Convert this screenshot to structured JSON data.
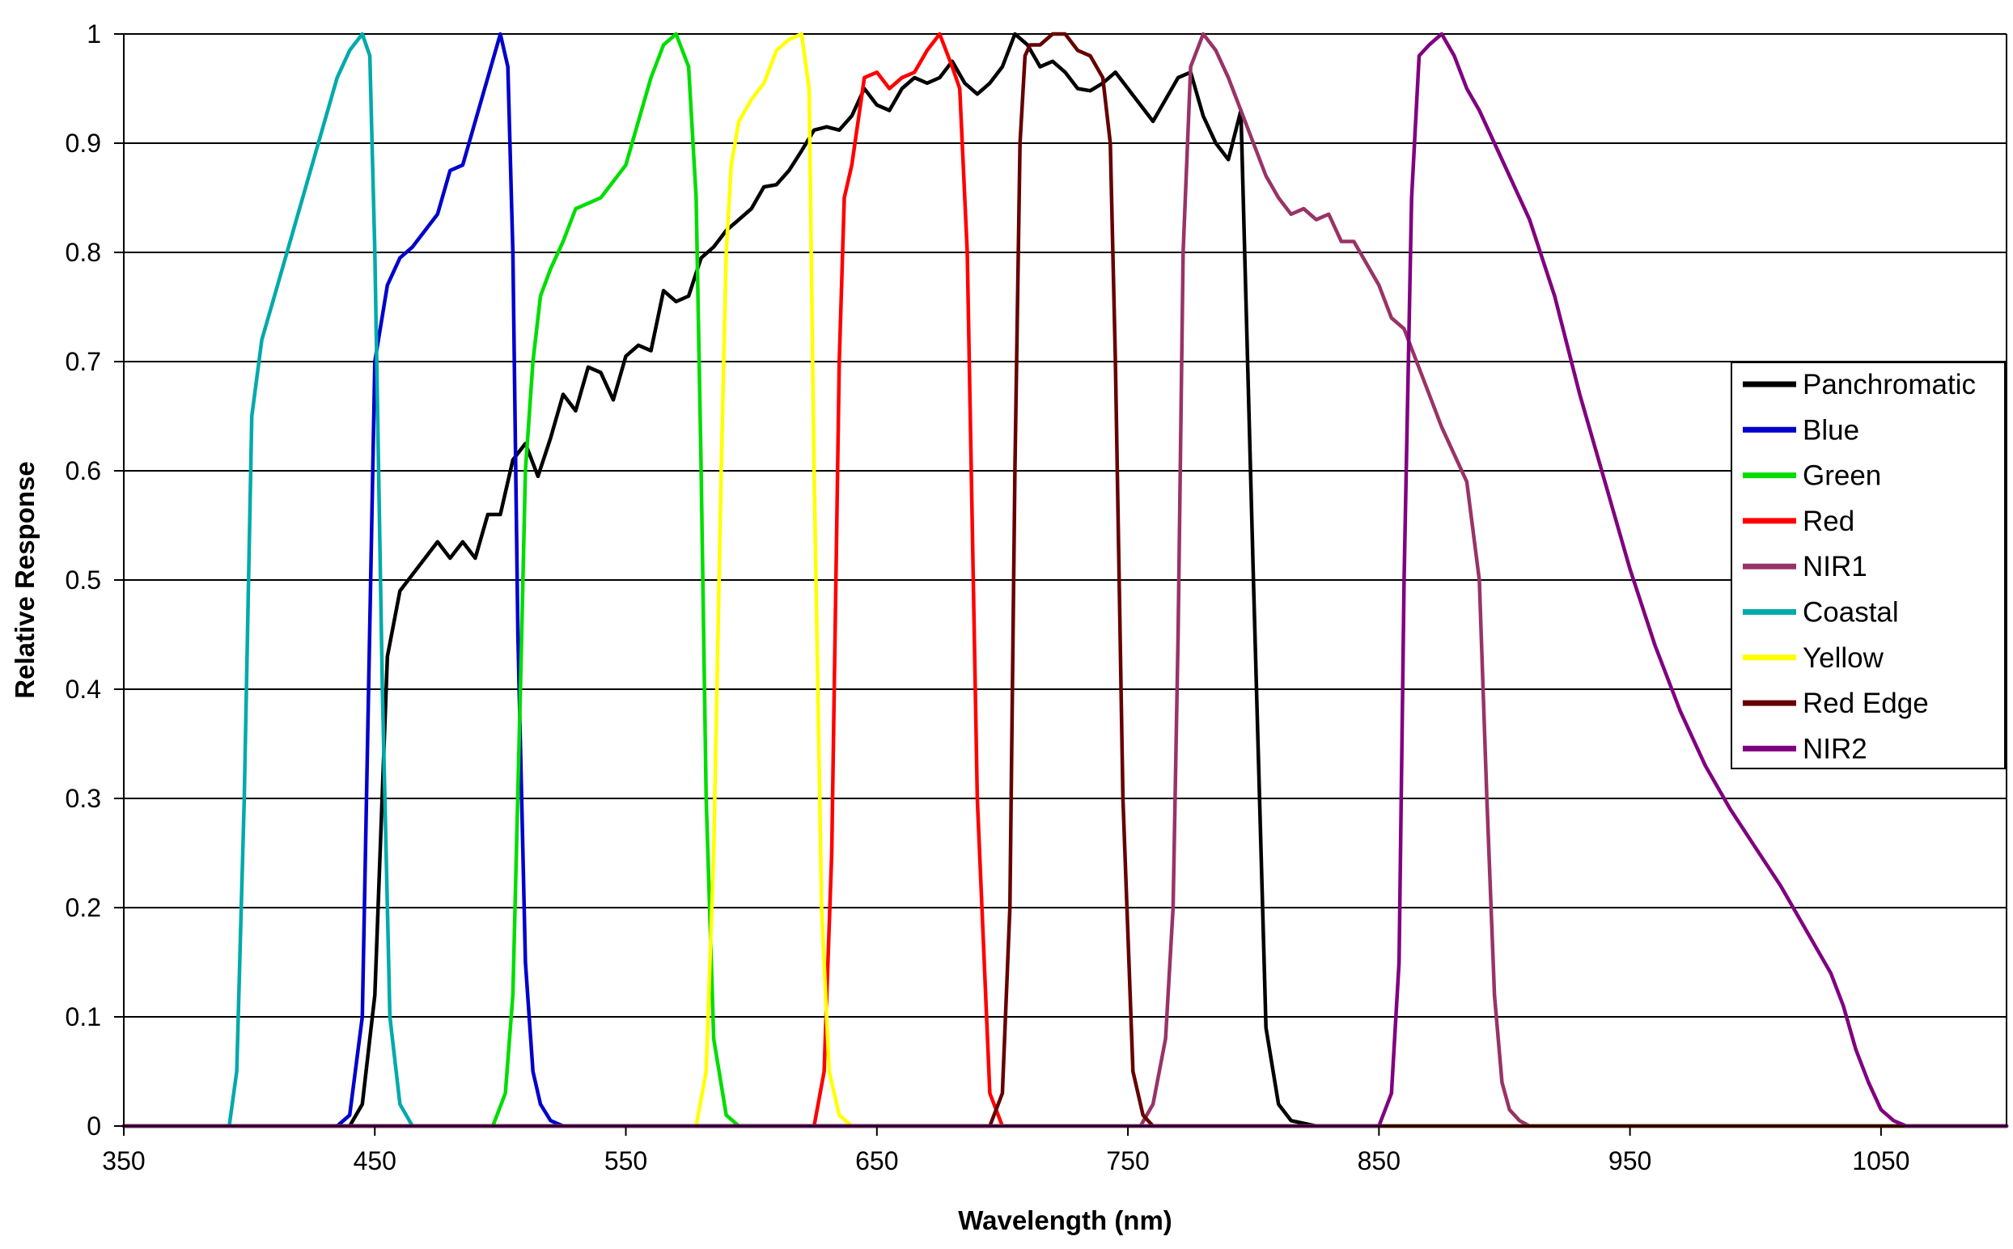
{
  "chart_data": {
    "type": "line",
    "title": "",
    "xlabel": "Wavelength (nm)",
    "ylabel": "Relative Response",
    "xlim": [
      350,
      1100
    ],
    "ylim": [
      0,
      1
    ],
    "x_ticks": [
      350,
      450,
      550,
      650,
      750,
      850,
      950,
      1050
    ],
    "y_ticks": [
      0,
      0.1,
      0.2,
      0.3,
      0.4,
      0.5,
      0.6,
      0.7,
      0.8,
      0.9,
      1
    ],
    "x_tick_labels": [
      "350",
      "450",
      "550",
      "650",
      "750",
      "850",
      "950",
      "1050"
    ],
    "y_tick_labels": [
      "0",
      "0.1",
      "0.2",
      "0.3",
      "0.4",
      "0.5",
      "0.6",
      "0.7",
      "0.8",
      "0.9",
      "1"
    ],
    "grid": "horizontal",
    "legend_position": "right",
    "series": [
      {
        "name": "Panchromatic",
        "color": "#000000",
        "x": [
          350,
          440,
          445,
          450,
          455,
          460,
          470,
          475,
          480,
          485,
          490,
          495,
          500,
          505,
          510,
          515,
          520,
          525,
          530,
          535,
          540,
          545,
          550,
          555,
          560,
          565,
          570,
          575,
          580,
          585,
          590,
          595,
          600,
          605,
          610,
          615,
          620,
          625,
          630,
          635,
          640,
          645,
          650,
          655,
          660,
          665,
          670,
          675,
          680,
          685,
          690,
          695,
          700,
          705,
          710,
          715,
          720,
          725,
          730,
          735,
          740,
          745,
          750,
          755,
          760,
          765,
          770,
          775,
          780,
          785,
          790,
          795,
          800,
          805,
          810,
          815,
          825,
          1100
        ],
        "y": [
          0,
          0,
          0.02,
          0.12,
          0.43,
          0.49,
          0.52,
          0.535,
          0.52,
          0.535,
          0.52,
          0.56,
          0.56,
          0.61,
          0.625,
          0.595,
          0.63,
          0.67,
          0.655,
          0.695,
          0.69,
          0.665,
          0.705,
          0.715,
          0.71,
          0.765,
          0.755,
          0.76,
          0.795,
          0.805,
          0.82,
          0.83,
          0.84,
          0.86,
          0.862,
          0.875,
          0.893,
          0.912,
          0.915,
          0.912,
          0.925,
          0.95,
          0.935,
          0.93,
          0.95,
          0.96,
          0.955,
          0.96,
          0.975,
          0.955,
          0.945,
          0.955,
          0.97,
          1.0,
          0.99,
          0.97,
          0.975,
          0.965,
          0.95,
          0.948,
          0.955,
          0.965,
          0.95,
          0.935,
          0.92,
          0.94,
          0.96,
          0.965,
          0.925,
          0.9,
          0.885,
          0.93,
          0.5,
          0.09,
          0.02,
          0.005,
          0,
          0
        ]
      },
      {
        "name": "Blue",
        "color": "#0000cc",
        "x": [
          350,
          435,
          440,
          445,
          450,
          455,
          460,
          465,
          470,
          475,
          480,
          485,
          490,
          495,
          500,
          503,
          505,
          507,
          510,
          513,
          516,
          520,
          525,
          1100
        ],
        "y": [
          0,
          0,
          0.01,
          0.1,
          0.7,
          0.77,
          0.795,
          0.805,
          0.82,
          0.835,
          0.875,
          0.88,
          0.92,
          0.96,
          1.0,
          0.97,
          0.8,
          0.45,
          0.15,
          0.05,
          0.02,
          0.005,
          0,
          0
        ]
      },
      {
        "name": "Green",
        "color": "#00dd00",
        "x": [
          350,
          497,
          502,
          505,
          508,
          510,
          513,
          516,
          520,
          525,
          530,
          535,
          540,
          545,
          550,
          555,
          560,
          565,
          570,
          575,
          578,
          580,
          582,
          585,
          590,
          595,
          1100
        ],
        "y": [
          0,
          0,
          0.03,
          0.12,
          0.4,
          0.6,
          0.7,
          0.76,
          0.785,
          0.81,
          0.84,
          0.845,
          0.85,
          0.865,
          0.88,
          0.92,
          0.96,
          0.99,
          1.0,
          0.97,
          0.85,
          0.6,
          0.3,
          0.08,
          0.01,
          0,
          0
        ]
      },
      {
        "name": "Red",
        "color": "#ff0000",
        "x": [
          350,
          625,
          629,
          632,
          635,
          637,
          640,
          645,
          650,
          655,
          660,
          665,
          670,
          675,
          680,
          683,
          686,
          690,
          695,
          700,
          1100
        ],
        "y": [
          0,
          0,
          0.05,
          0.25,
          0.7,
          0.85,
          0.88,
          0.96,
          0.965,
          0.95,
          0.96,
          0.965,
          0.985,
          1.0,
          0.97,
          0.95,
          0.8,
          0.3,
          0.03,
          0,
          0
        ]
      },
      {
        "name": "NIR1",
        "color": "#993366",
        "x": [
          350,
          755,
          760,
          765,
          768,
          770,
          772,
          775,
          780,
          785,
          790,
          795,
          800,
          805,
          810,
          815,
          820,
          825,
          830,
          835,
          840,
          845,
          850,
          855,
          860,
          865,
          870,
          875,
          880,
          885,
          890,
          893,
          896,
          899,
          902,
          906,
          910,
          920,
          1100
        ],
        "y": [
          0,
          0,
          0.02,
          0.08,
          0.2,
          0.45,
          0.8,
          0.97,
          1.0,
          0.985,
          0.96,
          0.93,
          0.9,
          0.87,
          0.85,
          0.835,
          0.84,
          0.83,
          0.835,
          0.81,
          0.81,
          0.79,
          0.77,
          0.74,
          0.73,
          0.7,
          0.67,
          0.64,
          0.615,
          0.59,
          0.5,
          0.3,
          0.12,
          0.04,
          0.015,
          0.005,
          0,
          0,
          0
        ]
      },
      {
        "name": "Coastal",
        "color": "#00aaaa",
        "x": [
          350,
          392,
          395,
          398,
          401,
          405,
          410,
          415,
          420,
          425,
          430,
          435,
          440,
          445,
          448,
          450,
          453,
          456,
          460,
          465,
          1100
        ],
        "y": [
          0,
          0,
          0.05,
          0.3,
          0.65,
          0.72,
          0.76,
          0.8,
          0.84,
          0.88,
          0.92,
          0.96,
          0.985,
          1.0,
          0.98,
          0.8,
          0.4,
          0.1,
          0.02,
          0,
          0
        ]
      },
      {
        "name": "Yellow",
        "color": "#ffff00",
        "x": [
          350,
          578,
          582,
          585,
          588,
          590,
          592,
          595,
          600,
          605,
          610,
          615,
          620,
          623,
          625,
          628,
          631,
          635,
          640,
          1100
        ],
        "y": [
          0,
          0,
          0.05,
          0.25,
          0.6,
          0.8,
          0.88,
          0.92,
          0.94,
          0.955,
          0.985,
          0.995,
          1.0,
          0.95,
          0.6,
          0.2,
          0.05,
          0.01,
          0,
          0
        ]
      },
      {
        "name": "Red Edge",
        "color": "#660000",
        "x": [
          350,
          695,
          700,
          703,
          705,
          707,
          709,
          711,
          715,
          720,
          725,
          730,
          735,
          740,
          743,
          745,
          748,
          752,
          756,
          760,
          1100
        ],
        "y": [
          0,
          0,
          0.03,
          0.2,
          0.6,
          0.9,
          0.98,
          0.99,
          0.99,
          1.0,
          1.0,
          0.985,
          0.98,
          0.96,
          0.9,
          0.7,
          0.3,
          0.05,
          0.01,
          0,
          0
        ]
      },
      {
        "name": "NIR2",
        "color": "#800080",
        "x": [
          350,
          850,
          855,
          858,
          860,
          863,
          866,
          870,
          875,
          880,
          885,
          890,
          900,
          910,
          920,
          930,
          940,
          950,
          960,
          970,
          980,
          990,
          1000,
          1010,
          1020,
          1030,
          1035,
          1040,
          1045,
          1050,
          1055,
          1060,
          1100
        ],
        "y": [
          0,
          0,
          0.03,
          0.15,
          0.5,
          0.85,
          0.98,
          0.99,
          1.0,
          0.98,
          0.95,
          0.93,
          0.88,
          0.83,
          0.76,
          0.67,
          0.59,
          0.51,
          0.44,
          0.38,
          0.33,
          0.29,
          0.255,
          0.22,
          0.18,
          0.14,
          0.11,
          0.07,
          0.04,
          0.015,
          0.005,
          0,
          0
        ]
      }
    ]
  }
}
